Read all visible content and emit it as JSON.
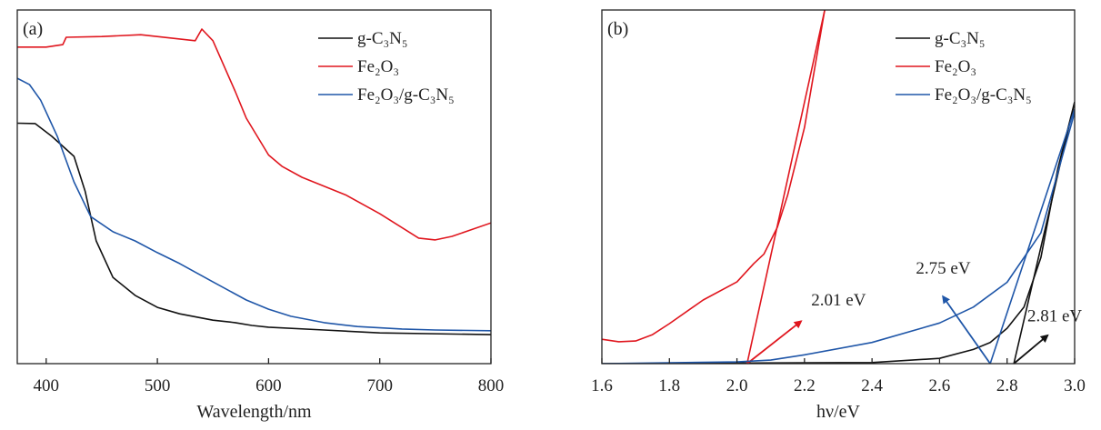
{
  "chart_data": [
    {
      "type": "line",
      "panel_label": "(a)",
      "xlabel": "Wavelength/nm",
      "ylabel": "",
      "xlim": [
        374,
        800
      ],
      "ylim": [
        0,
        100
      ],
      "xticks": [
        400,
        500,
        600,
        700,
        800
      ],
      "legend_position": "top-right",
      "series": [
        {
          "name": "g-C₃N₅",
          "color": "#111111",
          "x": [
            374,
            390,
            405,
            425,
            435,
            445,
            460,
            480,
            500,
            520,
            550,
            570,
            585,
            600,
            650,
            700,
            800
          ],
          "y": [
            68,
            67.9,
            64.3,
            58.6,
            48.8,
            34.7,
            24.4,
            19.3,
            15.9,
            14.1,
            12.3,
            11.6,
            10.8,
            10.3,
            9.5,
            8.7,
            8.2
          ]
        },
        {
          "name": "Fe₂O₃",
          "color": "#e0161e",
          "x": [
            374,
            400,
            415,
            418,
            450,
            485,
            534,
            540,
            550,
            570,
            580,
            600,
            612,
            630,
            670,
            700,
            735,
            750,
            765,
            800
          ],
          "y": [
            89.5,
            89.5,
            90.2,
            92.3,
            92.5,
            93,
            91.3,
            94.6,
            91.3,
            77,
            69.4,
            59,
            55.8,
            52.7,
            47.6,
            42.4,
            35.5,
            35,
            36,
            39.8
          ]
        },
        {
          "name": "Fe₂O₃/g-C₃N₅",
          "color": "#1f56a8",
          "x": [
            374,
            385,
            395,
            410,
            425,
            440,
            460,
            480,
            500,
            520,
            550,
            580,
            600,
            620,
            650,
            680,
            720,
            750,
            800
          ],
          "y": [
            80.7,
            78.9,
            74.5,
            64.3,
            51.4,
            41.6,
            37.3,
            34.7,
            31.4,
            28.3,
            23.1,
            18,
            15.4,
            13.4,
            11.6,
            10.5,
            9.8,
            9.5,
            9.3
          ]
        }
      ]
    },
    {
      "type": "line",
      "panel_label": "(b)",
      "xlabel": "hν/eV",
      "ylabel": "",
      "xlim": [
        1.6,
        3.0
      ],
      "ylim": [
        0,
        100
      ],
      "xticks": [
        "1.6",
        "1.8",
        "2.0",
        "2.2",
        "2.4",
        "2.6",
        "2.8",
        "3.0"
      ],
      "legend_position": "top-right",
      "series": [
        {
          "name": "g-C₃N₅",
          "color": "#111111",
          "x": [
            1.6,
            2.4,
            2.6,
            2.7,
            2.75,
            2.8,
            2.85,
            2.9,
            2.95,
            3.0
          ],
          "y": [
            0,
            0.3,
            1.5,
            4,
            6,
            10,
            16,
            30,
            55,
            74
          ],
          "tangent": {
            "x": [
              2.82,
              3.0
            ],
            "y": [
              0,
              74
            ]
          },
          "annotation": {
            "text": "2.81 eV",
            "arrow_from": [
              2.82,
              0
            ],
            "arrow_to": [
              2.92,
              8
            ],
            "label_at": [
              2.86,
              12
            ]
          }
        },
        {
          "name": "Fe₂O₃",
          "color": "#e0161e",
          "x": [
            1.6,
            1.65,
            1.7,
            1.75,
            1.8,
            1.9,
            2.0,
            2.05,
            2.08,
            2.12,
            2.15,
            2.2,
            2.26
          ],
          "y": [
            6.9,
            6.2,
            6.4,
            8.2,
            11.3,
            18,
            23.1,
            28.3,
            31,
            38.6,
            47.6,
            66.8,
            100
          ],
          "tangent": {
            "x": [
              2.03,
              2.26
            ],
            "y": [
              0,
              100
            ]
          },
          "annotation": {
            "text": "2.01 eV",
            "arrow_from": [
              2.03,
              0
            ],
            "arrow_to": [
              2.19,
              12
            ],
            "label_at": [
              2.22,
              16.5
            ]
          }
        },
        {
          "name": "Fe₂O₃/g-C₃N₅",
          "color": "#1f56a8",
          "x": [
            1.6,
            2.0,
            2.1,
            2.2,
            2.4,
            2.6,
            2.7,
            2.8,
            2.9,
            3.0
          ],
          "y": [
            0,
            0.5,
            1,
            2.5,
            6,
            11.5,
            16,
            23,
            37,
            71
          ],
          "tangent": {
            "x": [
              2.75,
              3.0
            ],
            "y": [
              0,
              72
            ]
          },
          "annotation": {
            "text": "2.75 eV",
            "arrow_from": [
              2.75,
              0
            ],
            "arrow_to": [
              2.61,
              19
            ],
            "label_at": [
              2.53,
              25.5
            ]
          }
        }
      ]
    }
  ]
}
